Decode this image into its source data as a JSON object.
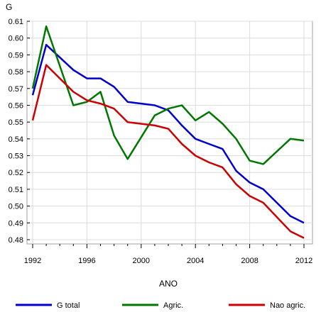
{
  "chart_data": {
    "type": "line",
    "title": "",
    "xlabel": "ANO",
    "ylabel": "G",
    "xlim": [
      1992,
      2012
    ],
    "ylim": [
      0.48,
      0.61
    ],
    "x_ticks": [
      1992,
      1996,
      2000,
      2004,
      2008,
      2012
    ],
    "y_ticks": [
      0.48,
      0.49,
      0.5,
      0.51,
      0.52,
      0.53,
      0.54,
      0.55,
      0.56,
      0.57,
      0.58,
      0.59,
      0.6,
      0.61
    ],
    "x_tick_labels": [
      "1992",
      "1996",
      "2000",
      "2004",
      "2008",
      "2012"
    ],
    "y_tick_labels": [
      "0.48",
      "0.49",
      "0.50",
      "0.51",
      "0.52",
      "0.53",
      "0.54",
      "0.55",
      "0.56",
      "0.57",
      "0.58",
      "0.59",
      "0.60",
      "0.61"
    ],
    "grid": true,
    "legend_position": "bottom",
    "x": [
      1992,
      1993,
      1995,
      1996,
      1997,
      1998,
      1999,
      2001,
      2002,
      2003,
      2004,
      2005,
      2006,
      2007,
      2008,
      2009,
      2011,
      2012
    ],
    "series": [
      {
        "name": "G total",
        "color": "#0000cc",
        "values": [
          0.566,
          0.596,
          0.581,
          0.576,
          0.576,
          0.571,
          0.562,
          0.56,
          0.557,
          0.548,
          0.54,
          0.537,
          0.534,
          0.521,
          0.514,
          0.51,
          0.494,
          0.49
        ]
      },
      {
        "name": "Agric.",
        "color": "#007700",
        "values": [
          0.57,
          0.607,
          0.56,
          0.562,
          0.568,
          0.542,
          0.528,
          0.554,
          0.558,
          0.56,
          0.551,
          0.556,
          0.549,
          0.54,
          0.527,
          0.525,
          0.54,
          0.539
        ]
      },
      {
        "name": "Nao agric.",
        "color": "#cc0000",
        "values": [
          0.551,
          0.584,
          0.568,
          0.563,
          0.561,
          0.558,
          0.55,
          0.548,
          0.546,
          0.537,
          0.53,
          0.526,
          0.523,
          0.513,
          0.506,
          0.502,
          0.485,
          0.481
        ]
      }
    ]
  }
}
